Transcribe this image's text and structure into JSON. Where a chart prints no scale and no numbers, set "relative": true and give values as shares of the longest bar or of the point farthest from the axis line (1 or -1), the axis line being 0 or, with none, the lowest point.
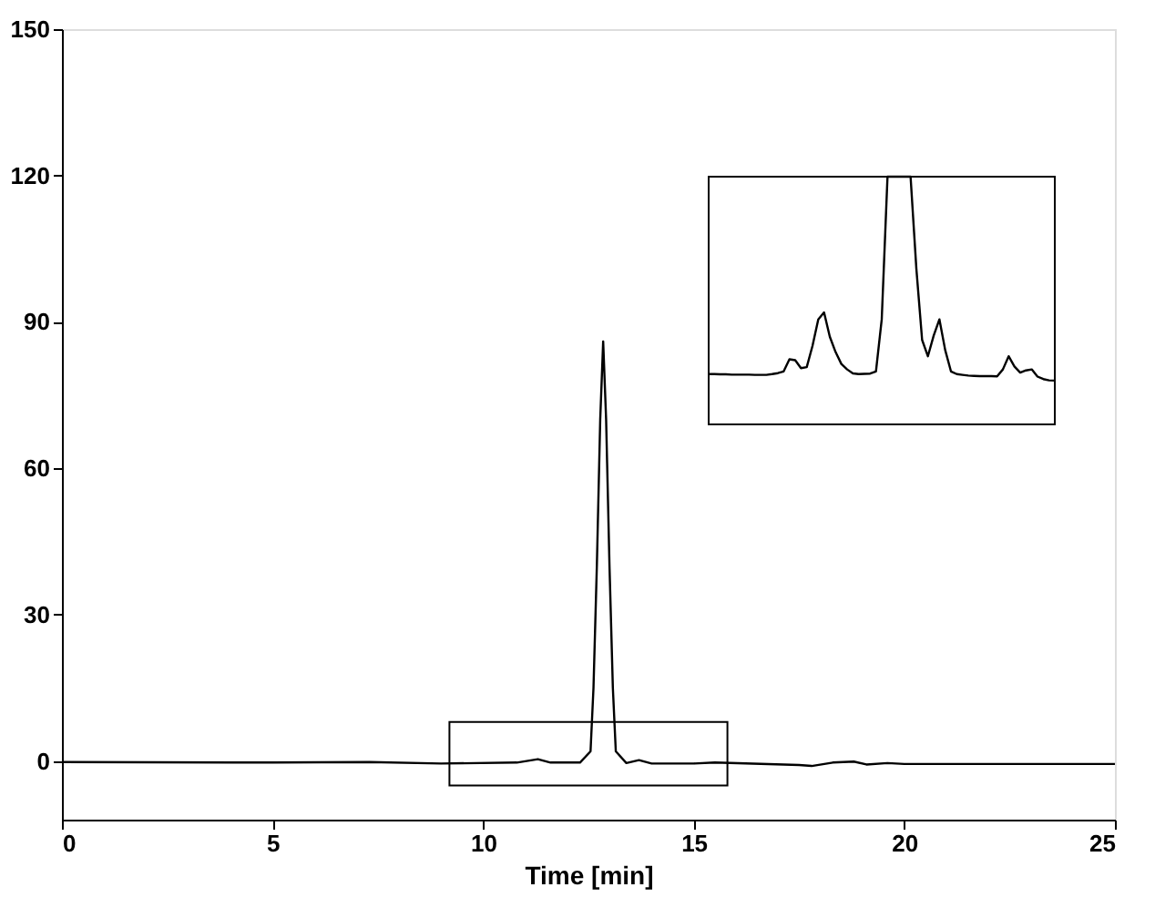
{
  "chart_data": [
    {
      "type": "line",
      "xlabel": "Time [min]",
      "xlim": [
        0,
        25
      ],
      "ylim": [
        -12,
        150
      ],
      "xticks": [
        0,
        5,
        10,
        15,
        20,
        25
      ],
      "yticks": [
        0,
        30,
        60,
        90,
        120,
        150
      ],
      "grid": false,
      "color": "#000000",
      "x": [
        0,
        5,
        7.3,
        9,
        10.8,
        11.3,
        11.6,
        12.3,
        12.55,
        12.62,
        12.7,
        12.78,
        12.85,
        12.92,
        13.0,
        13.08,
        13.15,
        13.4,
        13.7,
        14,
        15,
        15.5,
        17.5,
        17.8,
        18.3,
        18.8,
        19.1,
        19.6,
        20,
        25
      ],
      "values": [
        -0.2,
        -0.3,
        -0.2,
        -0.5,
        -0.3,
        0.4,
        -0.3,
        -0.3,
        2,
        15,
        40,
        70,
        86,
        70,
        40,
        15,
        2,
        -0.4,
        0.2,
        -0.5,
        -0.5,
        -0.3,
        -0.8,
        -1,
        -0.3,
        -0.1,
        -0.7,
        -0.4,
        -0.6,
        -0.6
      ]
    },
    {
      "type": "line",
      "relative": true,
      "tick_labels": false,
      "color": "#000000",
      "categories": [
        null,
        null,
        null,
        null,
        null,
        null,
        null,
        null,
        null,
        null,
        null,
        null,
        null,
        null,
        null,
        null,
        null,
        null,
        null,
        null,
        null,
        null,
        null,
        null,
        null,
        null,
        null,
        null,
        null,
        null,
        null,
        null,
        null,
        null,
        null,
        null,
        null,
        null,
        null,
        null,
        null,
        null,
        null,
        null,
        null,
        null,
        null,
        null,
        null,
        null,
        null,
        null,
        null,
        null,
        null,
        null,
        null,
        null,
        null,
        null,
        null
      ],
      "values": [
        0.203,
        0.203,
        0.202,
        0.202,
        0.201,
        0.201,
        0.201,
        0.201,
        0.2,
        0.2,
        0.2,
        0.203,
        0.207,
        0.214,
        0.263,
        0.259,
        0.227,
        0.231,
        0.317,
        0.424,
        0.452,
        0.354,
        0.292,
        0.244,
        0.222,
        0.206,
        0.203,
        0.204,
        0.205,
        0.214,
        0.424,
        1.0,
        1.0,
        1.0,
        1.0,
        1.0,
        0.629,
        0.341,
        0.275,
        0.358,
        0.424,
        0.3,
        0.214,
        0.203,
        0.2,
        0.197,
        0.196,
        0.195,
        0.195,
        0.195,
        0.194,
        0.222,
        0.275,
        0.234,
        0.209,
        0.218,
        0.222,
        0.193,
        0.183,
        0.178,
        0.177
      ]
    }
  ]
}
